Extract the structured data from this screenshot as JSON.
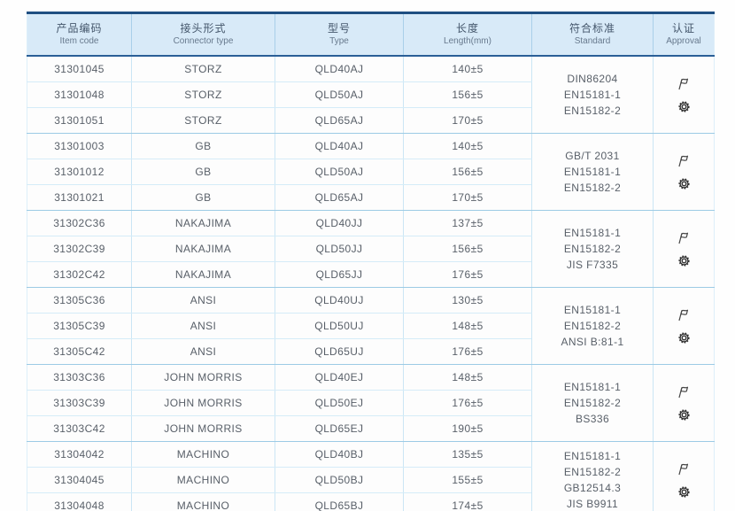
{
  "header": {
    "columns": [
      {
        "zh": "产品编码",
        "en": "Item code"
      },
      {
        "zh": "接头形式",
        "en": "Connector type"
      },
      {
        "zh": "型号",
        "en": "Type"
      },
      {
        "zh": "长度",
        "en": "Length(mm)"
      },
      {
        "zh": "符合标准",
        "en": "Standard"
      },
      {
        "zh": "认证",
        "en": "Approval"
      }
    ]
  },
  "groups": [
    {
      "rows": [
        {
          "item_code": "31301045",
          "connector_type": "STORZ",
          "type": "QLD40AJ",
          "length": "140±5"
        },
        {
          "item_code": "31301048",
          "connector_type": "STORZ",
          "type": "QLD50AJ",
          "length": "156±5"
        },
        {
          "item_code": "31301051",
          "connector_type": "STORZ",
          "type": "QLD65AJ",
          "length": "170±5"
        }
      ],
      "standards": [
        "DIN86204",
        "EN15181-1",
        "EN15182-2"
      ],
      "approval_icons": [
        "certificate-flag-icon",
        "gear-seal-icon"
      ]
    },
    {
      "rows": [
        {
          "item_code": "31301003",
          "connector_type": "GB",
          "type": "QLD40AJ",
          "length": "140±5"
        },
        {
          "item_code": "31301012",
          "connector_type": "GB",
          "type": "QLD50AJ",
          "length": "156±5"
        },
        {
          "item_code": "31301021",
          "connector_type": "GB",
          "type": "QLD65AJ",
          "length": "170±5"
        }
      ],
      "standards": [
        "GB/T 2031",
        "EN15181-1",
        "EN15182-2"
      ],
      "approval_icons": [
        "certificate-flag-icon",
        "gear-seal-icon"
      ]
    },
    {
      "rows": [
        {
          "item_code": "31302C36",
          "connector_type": "NAKAJIMA",
          "type": "QLD40JJ",
          "length": "137±5"
        },
        {
          "item_code": "31302C39",
          "connector_type": "NAKAJIMA",
          "type": "QLD50JJ",
          "length": "156±5"
        },
        {
          "item_code": "31302C42",
          "connector_type": "NAKAJIMA",
          "type": "QLD65JJ",
          "length": "176±5"
        }
      ],
      "standards": [
        "EN15181-1",
        "EN15182-2",
        "JIS F7335"
      ],
      "approval_icons": [
        "certificate-flag-icon",
        "gear-seal-icon"
      ]
    },
    {
      "rows": [
        {
          "item_code": "31305C36",
          "connector_type": "ANSI",
          "type": "QLD40UJ",
          "length": "130±5"
        },
        {
          "item_code": "31305C39",
          "connector_type": "ANSI",
          "type": "QLD50UJ",
          "length": "148±5"
        },
        {
          "item_code": "31305C42",
          "connector_type": "ANSI",
          "type": "QLD65UJ",
          "length": "176±5"
        }
      ],
      "standards": [
        "EN15181-1",
        "EN15182-2",
        "ANSI B:81-1"
      ],
      "approval_icons": [
        "certificate-flag-icon",
        "gear-seal-icon"
      ]
    },
    {
      "rows": [
        {
          "item_code": "31303C36",
          "connector_type": "JOHN MORRIS",
          "type": "QLD40EJ",
          "length": "148±5"
        },
        {
          "item_code": "31303C39",
          "connector_type": "JOHN MORRIS",
          "type": "QLD50EJ",
          "length": "176±5"
        },
        {
          "item_code": "31303C42",
          "connector_type": "JOHN MORRIS",
          "type": "QLD65EJ",
          "length": "190±5"
        }
      ],
      "standards": [
        "EN15181-1",
        "EN15182-2",
        "BS336"
      ],
      "approval_icons": [
        "certificate-flag-icon",
        "gear-seal-icon"
      ]
    },
    {
      "rows": [
        {
          "item_code": "31304042",
          "connector_type": "MACHINO",
          "type": "QLD40BJ",
          "length": "135±5"
        },
        {
          "item_code": "31304045",
          "connector_type": "MACHINO",
          "type": "QLD50BJ",
          "length": "155±5"
        },
        {
          "item_code": "31304048",
          "connector_type": "MACHINO",
          "type": "QLD65BJ",
          "length": "174±5"
        }
      ],
      "standards": [
        "EN15181-1",
        "EN15182-2",
        "GB12514.3",
        "JIS B9911"
      ],
      "approval_icons": [
        "certificate-flag-icon",
        "gear-seal-icon"
      ]
    }
  ],
  "colors": {
    "border_dark": "#1f4f82",
    "header_bg": "#d8eaf8",
    "grid_light": "#d5ecf8",
    "grid_group": "#9ccbe5",
    "body_text": "#585f68",
    "header_text": "#44566b"
  }
}
